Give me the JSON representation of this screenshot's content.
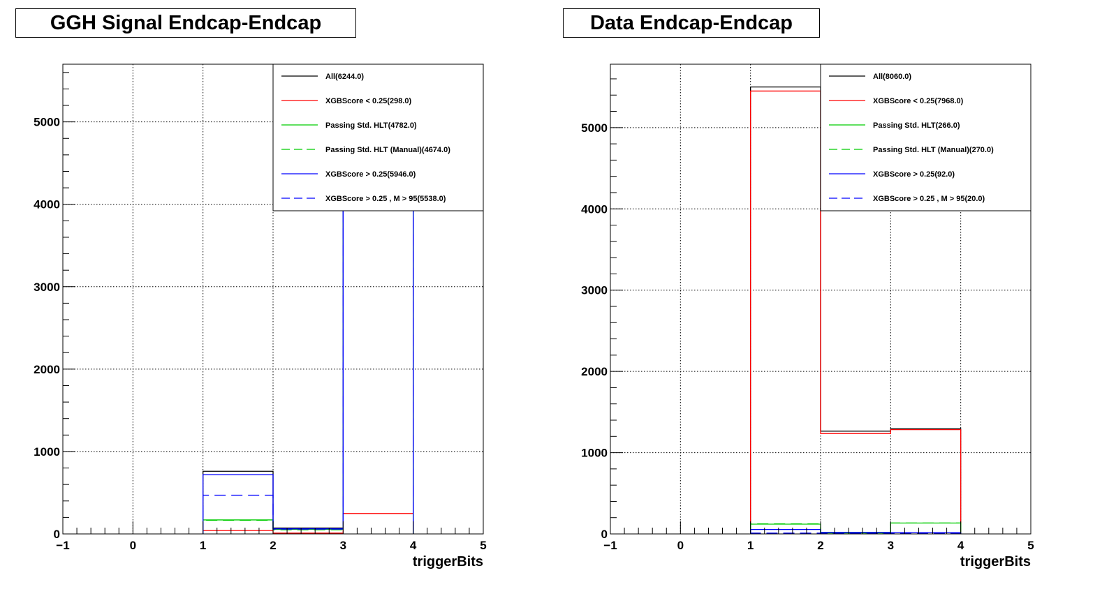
{
  "panels": [
    {
      "title": "GGH Signal Endcap-Endcap",
      "chart_data": {
        "type": "histogram",
        "xlabel": "triggerBits",
        "ylabel": "",
        "xlim": [
          -1,
          5
        ],
        "ylim": [
          0,
          5700
        ],
        "x_ticks": [
          "−1",
          "0",
          "1",
          "2",
          "3",
          "4",
          "5"
        ],
        "y_ticks": [
          "0",
          "1000",
          "2000",
          "3000",
          "4000",
          "5000"
        ],
        "grid": true,
        "legend_position": "top-right",
        "bin_edges": [
          1,
          2,
          3,
          4
        ],
        "series": [
          {
            "name": "All(6244.0)",
            "color": "#000000",
            "dash": "solid",
            "values": [
              760,
              72,
              5412
            ]
          },
          {
            "name": "XGBScore < 0.25(298.0)",
            "color": "#ff0000",
            "dash": "solid",
            "values": [
              40,
              10,
              248
            ]
          },
          {
            "name": "Passing Std. HLT(4782.0)",
            "color": "#00cc00",
            "dash": "solid",
            "values": [
              170,
              55,
              4557
            ]
          },
          {
            "name": "Passing Std. HLT (Manual)(4674.0)",
            "color": "#00cc00",
            "dash": "dashed",
            "values": [
              165,
              50,
              4459
            ]
          },
          {
            "name": "XGBScore > 0.25(5946.0)",
            "color": "#0000ff",
            "dash": "solid",
            "values": [
              720,
              62,
              5164
            ]
          },
          {
            "name": "XGBScore > 0.25 , M > 95(5538.0)",
            "color": "#0000ff",
            "dash": "dashed",
            "values": [
              470,
              58,
              5010
            ]
          }
        ]
      }
    },
    {
      "title": "Data Endcap-Endcap",
      "chart_data": {
        "type": "histogram",
        "xlabel": "triggerBits",
        "ylabel": "",
        "xlim": [
          -1,
          5
        ],
        "ylim": [
          0,
          5780
        ],
        "x_ticks": [
          "−1",
          "0",
          "1",
          "2",
          "3",
          "4",
          "5"
        ],
        "y_ticks": [
          "0",
          "1000",
          "2000",
          "3000",
          "4000",
          "5000"
        ],
        "grid": true,
        "legend_position": "top-right",
        "bin_edges": [
          1,
          2,
          3,
          4
        ],
        "series": [
          {
            "name": "All(8060.0)",
            "color": "#000000",
            "dash": "solid",
            "values": [
              5500,
              1265,
              1295
            ]
          },
          {
            "name": "XGBScore < 0.25(7968.0)",
            "color": "#ff0000",
            "dash": "solid",
            "values": [
              5450,
              1235,
              1283
            ]
          },
          {
            "name": "Passing Std. HLT(266.0)",
            "color": "#00cc00",
            "dash": "solid",
            "values": [
              120,
              12,
              134
            ]
          },
          {
            "name": "Passing Std. HLT (Manual)(270.0)",
            "color": "#00cc00",
            "dash": "dashed",
            "values": [
              124,
              12,
              134
            ]
          },
          {
            "name": "XGBScore > 0.25(92.0)",
            "color": "#0000ff",
            "dash": "solid",
            "values": [
              55,
              20,
              17
            ]
          },
          {
            "name": "XGBScore > 0.25 , M > 95(20.0)",
            "color": "#0000ff",
            "dash": "dashed",
            "values": [
              10,
              5,
              5
            ]
          }
        ]
      }
    }
  ]
}
